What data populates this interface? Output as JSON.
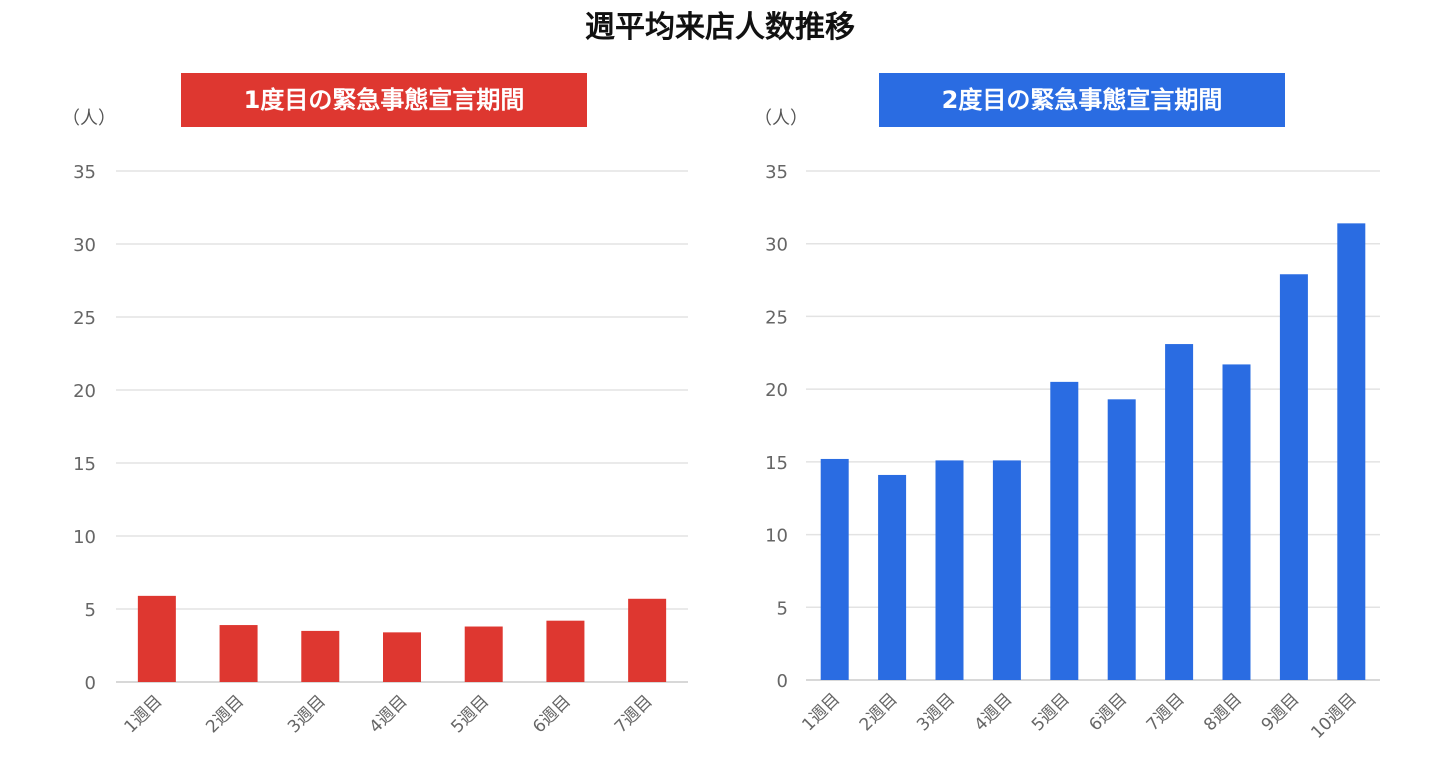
{
  "title": "週平均来店人数推移",
  "colors": {
    "red": "#de3730",
    "blue": "#2a6ce2",
    "grid": "#e3e3e3",
    "tick": "#666666"
  },
  "chart_data": [
    {
      "type": "bar",
      "title": "1度目の緊急事態宣言期間",
      "ylabel": "（人）",
      "xlabel": "",
      "color": "#de3730",
      "ylim": [
        0,
        35
      ],
      "yticks": [
        0,
        5,
        10,
        15,
        20,
        25,
        30,
        35
      ],
      "grid": true,
      "categories": [
        "1週目",
        "2週目",
        "3週目",
        "4週目",
        "5週目",
        "6週目",
        "7週目"
      ],
      "values": [
        5.9,
        3.9,
        3.5,
        3.4,
        3.8,
        4.2,
        5.7
      ]
    },
    {
      "type": "bar",
      "title": "2度目の緊急事態宣言期間",
      "ylabel": "（人）",
      "xlabel": "",
      "color": "#2a6ce2",
      "ylim": [
        0,
        35
      ],
      "yticks": [
        0,
        5,
        10,
        15,
        20,
        25,
        30,
        35
      ],
      "grid": true,
      "categories": [
        "1週目",
        "2週目",
        "3週目",
        "4週目",
        "5週目",
        "6週目",
        "7週目",
        "8週目",
        "9週目",
        "10週目"
      ],
      "values": [
        15.2,
        14.1,
        15.1,
        15.1,
        20.5,
        19.3,
        23.1,
        21.7,
        27.9,
        31.4
      ]
    }
  ]
}
